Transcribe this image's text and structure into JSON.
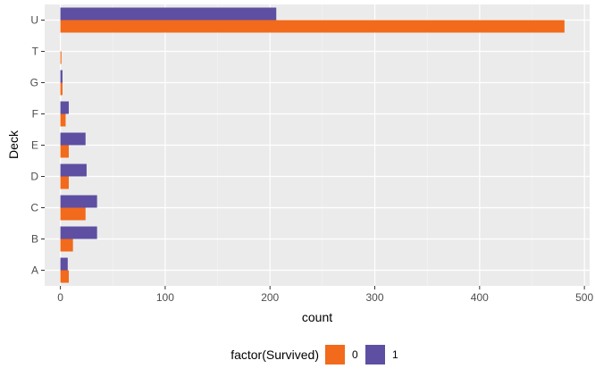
{
  "chart_data": {
    "type": "bar",
    "orientation": "horizontal",
    "position": "dodge",
    "xlabel": "count",
    "ylabel": "Deck",
    "xlim": [
      -15,
      505
    ],
    "xticks": [
      0,
      100,
      200,
      300,
      400,
      500
    ],
    "categories": [
      "A",
      "B",
      "C",
      "D",
      "E",
      "F",
      "G",
      "T",
      "U"
    ],
    "legend": {
      "title": "factor(Survived)",
      "position": "bottom"
    },
    "series": [
      {
        "name": "0",
        "color": "#F26A1B",
        "values": [
          8,
          12,
          24,
          8,
          8,
          5,
          2,
          1,
          481
        ]
      },
      {
        "name": "1",
        "color": "#5E4FA2",
        "values": [
          7,
          35,
          35,
          25,
          24,
          8,
          2,
          0,
          206
        ]
      }
    ],
    "panel_background": "#EBEBEB",
    "grid": true
  }
}
